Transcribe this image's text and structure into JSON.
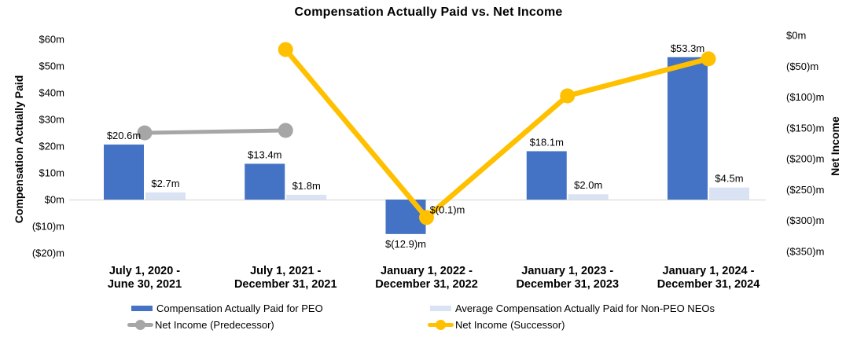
{
  "chart_data": {
    "type": "combo-bar-line",
    "title": "Compensation Actually Paid vs. Net Income",
    "units": "USD millions",
    "categories": [
      "July 1, 2020 -\nJune 30, 2021",
      "July 1, 2021 -\nDecember 31, 2021",
      "January 1, 2022 -\nDecember 31, 2022",
      "January 1, 2023 -\nDecember 31, 2023",
      "January 1, 2024 -\nDecember 31, 2024"
    ],
    "bar_series": [
      {
        "name": "Compensation Actually Paid for PEO",
        "color": "#4472C4",
        "axis": "left",
        "values": [
          20.6,
          13.4,
          -12.9,
          18.1,
          53.3
        ],
        "labels": [
          "$20.6m",
          "$13.4m",
          "$(12.9)m",
          "$18.1m",
          "$53.3m"
        ]
      },
      {
        "name": "Average Compensation Actually Paid for Non-PEO NEOs",
        "color": "#DAE3F3",
        "axis": "left",
        "values": [
          2.7,
          1.8,
          -0.1,
          2.0,
          4.5
        ],
        "labels": [
          "$2.7m",
          "$1.8m",
          "$(0.1)m",
          "$2.0m",
          "$4.5m"
        ]
      }
    ],
    "line_series": [
      {
        "name": "Net Income (Predecessor)",
        "color": "#A6A6A6",
        "axis": "right",
        "values_estimated_from_gridlines": true,
        "points": [
          {
            "category_index": 0,
            "value": -158
          },
          {
            "category_index": 1,
            "value": -154
          }
        ]
      },
      {
        "name": "Net Income (Successor)",
        "color": "#FFC000",
        "axis": "right",
        "values_estimated_from_gridlines": true,
        "points": [
          {
            "category_index": 1,
            "value": -23
          },
          {
            "category_index": 2,
            "value": -295
          },
          {
            "category_index": 3,
            "value": -98
          },
          {
            "category_index": 4,
            "value": -38
          }
        ]
      }
    ],
    "left_axis": {
      "label": "Compensation Actually Paid",
      "min": -20,
      "max": 60,
      "tick_values": [
        60,
        50,
        40,
        30,
        20,
        10,
        0,
        -10,
        -20
      ],
      "tick_labels": [
        "$60m",
        "$50m",
        "$40m",
        "$30m",
        "$20m",
        "$10m",
        "$0m",
        "($10)m",
        "($20)m"
      ]
    },
    "right_axis": {
      "label": "Net Income",
      "min": -350,
      "max": 0,
      "tick_values": [
        0,
        -50,
        -100,
        -150,
        -200,
        -250,
        -300,
        -350
      ],
      "tick_labels": [
        "$0m",
        "($50)m",
        "($100)m",
        "($150)m",
        "($200)m",
        "($250)m",
        "($300)m",
        "($350)m"
      ]
    },
    "legend": [
      {
        "label": "Compensation Actually Paid for PEO",
        "type": "bar",
        "color": "#4472C4"
      },
      {
        "label": "Average Compensation Actually Paid for Non-PEO NEOs",
        "type": "bar",
        "color": "#DAE3F3"
      },
      {
        "label": "Net Income (Predecessor)",
        "type": "line",
        "color": "#A6A6A6"
      },
      {
        "label": "Net Income (Successor)",
        "type": "line",
        "color": "#FFC000"
      }
    ],
    "gridline_color": "#D9D9D9",
    "legend_position": "bottom"
  }
}
